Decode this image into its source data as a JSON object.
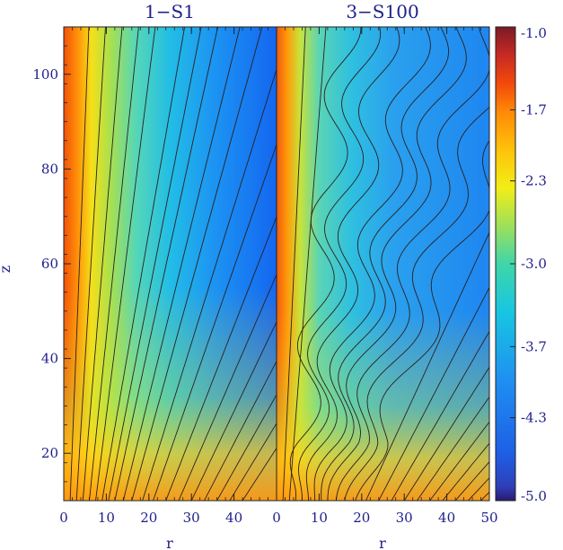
{
  "chart_data": {
    "type": "heatmap",
    "panels": [
      {
        "title": "1−S1",
        "xlabel": "r",
        "ylabel": "z",
        "xlim": [
          0,
          50
        ],
        "ylim": [
          10,
          110
        ],
        "xticks": [
          0,
          10,
          20,
          30,
          40
        ],
        "yticks": [
          20,
          40,
          60,
          80,
          100
        ],
        "field_lines_r_at_base": [
          1.5,
          3,
          4.5,
          6,
          7.5,
          9,
          10.5,
          12,
          14,
          16,
          18.5,
          21,
          24,
          27,
          30,
          33,
          36,
          39,
          42
        ],
        "field_line_spread": 0.16
      },
      {
        "title": "3−S100",
        "xlabel": "r",
        "xlim": [
          0,
          50
        ],
        "ylim": [
          10,
          110
        ],
        "xticks": [
          0,
          10,
          20,
          30,
          40,
          50
        ],
        "field_lines_r_at_base": [
          1.5,
          3,
          4.5,
          6,
          7.5,
          9,
          10.5,
          12,
          14,
          16,
          18.5,
          21,
          24,
          27,
          30,
          33,
          36,
          39,
          42,
          45,
          48
        ],
        "field_line_spread": 0.22,
        "wiggle_amplitude_r": 3.5
      }
    ],
    "colorbar": {
      "ticks": [
        "-1.0",
        "-1.7",
        "-2.3",
        "-3.0",
        "-3.7",
        "-4.3",
        "-5.0"
      ],
      "values": [
        -1.0,
        -1.7,
        -2.3,
        -3.0,
        -3.7,
        -4.3,
        -5.0
      ],
      "range": [
        -5.0,
        -1.0
      ]
    }
  }
}
